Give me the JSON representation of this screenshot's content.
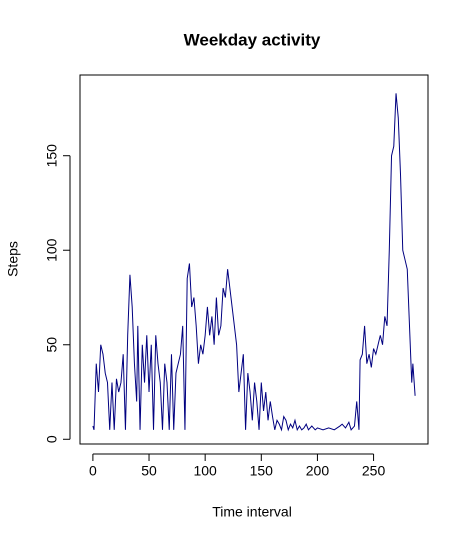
{
  "chart_data": {
    "type": "line",
    "title": "Weekday activity",
    "x_label": "Time interval",
    "y_label": "Steps",
    "x": [
      0,
      1,
      3,
      5,
      7,
      9,
      11,
      13,
      15,
      17,
      19,
      21,
      23,
      25,
      27,
      29,
      31,
      33,
      35,
      37,
      39,
      40,
      42,
      44,
      46,
      48,
      50,
      52,
      54,
      56,
      58,
      60,
      62,
      64,
      66,
      68,
      70,
      72,
      74,
      76,
      78,
      80,
      82,
      84,
      86,
      88,
      90,
      92,
      94,
      96,
      98,
      100,
      102,
      104,
      106,
      108,
      110,
      112,
      114,
      116,
      118,
      120,
      122,
      124,
      126,
      128,
      130,
      132,
      134,
      136,
      138,
      140,
      142,
      144,
      146,
      148,
      150,
      152,
      154,
      156,
      158,
      160,
      162,
      164,
      166,
      168,
      170,
      172,
      174,
      176,
      178,
      180,
      182,
      184,
      186,
      188,
      190,
      192,
      195,
      198,
      200,
      205,
      210,
      215,
      220,
      222,
      225,
      228,
      230,
      233,
      235,
      237,
      238,
      240,
      242,
      244,
      246,
      248,
      250,
      252,
      254,
      256,
      258,
      260,
      262,
      264,
      266,
      268,
      270,
      272,
      274,
      276,
      278,
      280,
      282,
      284,
      285,
      287
    ],
    "series": [
      {
        "name": "Steps",
        "color": "#000080",
        "values": [
          7,
          5,
          40,
          25,
          50,
          45,
          35,
          30,
          5,
          30,
          5,
          32,
          25,
          30,
          45,
          5,
          55,
          87,
          70,
          40,
          20,
          60,
          5,
          50,
          30,
          55,
          25,
          50,
          5,
          55,
          40,
          30,
          5,
          40,
          30,
          5,
          45,
          5,
          35,
          40,
          45,
          60,
          5,
          85,
          93,
          70,
          75,
          60,
          40,
          50,
          45,
          55,
          70,
          55,
          65,
          50,
          75,
          55,
          60,
          80,
          75,
          90,
          80,
          70,
          60,
          50,
          25,
          35,
          45,
          5,
          35,
          25,
          10,
          30,
          20,
          5,
          30,
          15,
          25,
          10,
          20,
          12,
          5,
          10,
          8,
          5,
          12,
          10,
          5,
          8,
          6,
          10,
          5,
          7,
          5,
          6,
          8,
          5,
          7,
          5,
          6,
          5,
          6,
          5,
          7,
          8,
          6,
          9,
          5,
          7,
          20,
          5,
          42,
          45,
          60,
          40,
          45,
          38,
          48,
          45,
          50,
          55,
          50,
          65,
          60,
          100,
          150,
          155,
          183,
          170,
          140,
          100,
          95,
          90,
          60,
          30,
          40,
          23
        ]
      }
    ],
    "xlim": [
      -11.48,
      298.48
    ],
    "ylim": [
      -2.5,
      192.7
    ],
    "xticks": [
      0,
      50,
      100,
      150,
      200,
      250
    ],
    "yticks": [
      0,
      50,
      100,
      150
    ]
  }
}
